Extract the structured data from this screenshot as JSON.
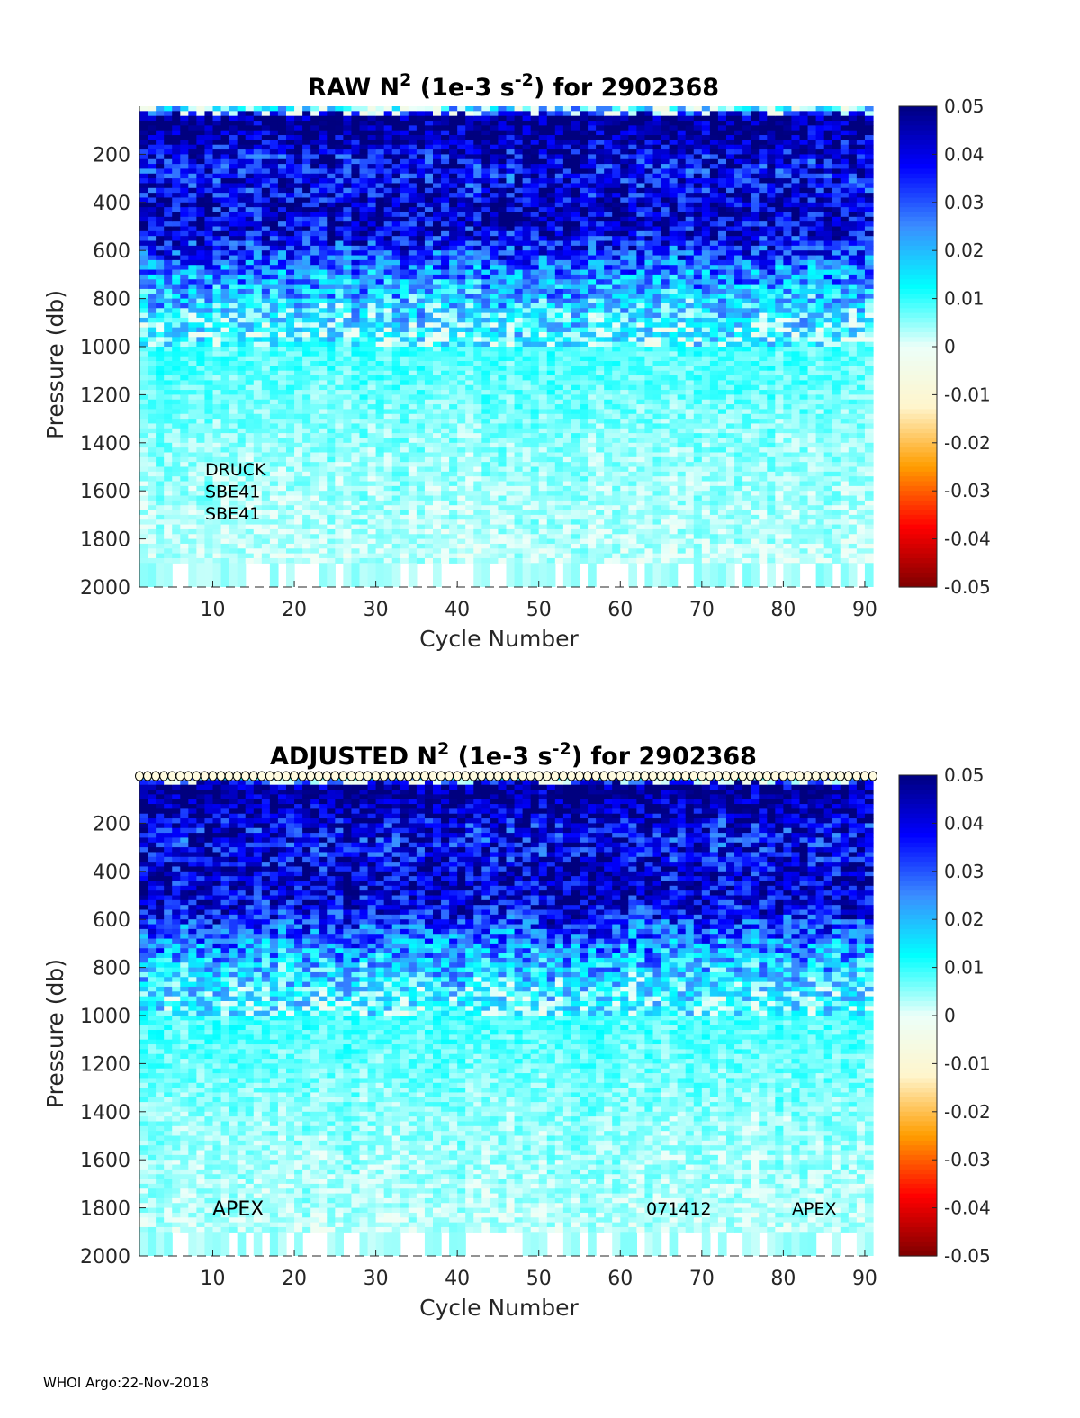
{
  "footer": "WHOI Argo:22-Nov-2018",
  "colorbar": {
    "ticks": [
      "0.05",
      "0.04",
      "0.03",
      "0.02",
      "0.01",
      "0",
      "-0.01",
      "-0.02",
      "-0.03",
      "-0.04",
      "-0.05"
    ],
    "range": [
      -0.05,
      0.05
    ],
    "colormap": [
      "#7f0000",
      "#ff0000",
      "#ff9e00",
      "#fff5cc",
      "#ecfff9",
      "#00ffff",
      "#3b8cff",
      "#0000ff",
      "#00007f"
    ]
  },
  "chart_data": [
    {
      "type": "heatmap",
      "title_main": "RAW N",
      "title_sup": "2",
      "title_mid": " (1e-3 s",
      "title_sup2": "-2",
      "title_end": ") for 2902368",
      "xlabel": "Cycle Number",
      "ylabel": "Pressure (db)",
      "xlim": [
        1,
        91
      ],
      "ylim": [
        0,
        2000
      ],
      "y_reversed": true,
      "xticks": [
        10,
        20,
        30,
        40,
        50,
        60,
        70,
        80,
        90
      ],
      "yticks": [
        200,
        400,
        600,
        800,
        1000,
        1200,
        1400,
        1600,
        1800,
        2000
      ],
      "clim": [
        -0.05,
        0.05
      ],
      "depth_profile": {
        "pressure": [
          0,
          40,
          100,
          200,
          300,
          400,
          500,
          600,
          700,
          800,
          900,
          1000,
          1200,
          1400,
          1600,
          1800,
          1900
        ],
        "n2": [
          0.003,
          0.05,
          0.05,
          0.04,
          0.038,
          0.042,
          0.042,
          0.035,
          0.025,
          0.018,
          0.012,
          0.009,
          0.007,
          0.005,
          0.004,
          0.003,
          0.002
        ]
      },
      "annotations": [
        "DRUCK",
        "SBE41",
        "SBE41"
      ],
      "top_markers": false
    },
    {
      "type": "heatmap",
      "title_main": "ADJUSTED N",
      "title_sup": "2",
      "title_mid": " (1e-3 s",
      "title_sup2": "-2",
      "title_end": ") for 2902368",
      "xlabel": "Cycle Number",
      "ylabel": "Pressure (db)",
      "xlim": [
        1,
        91
      ],
      "ylim": [
        0,
        2000
      ],
      "y_reversed": true,
      "xticks": [
        10,
        20,
        30,
        40,
        50,
        60,
        70,
        80,
        90
      ],
      "yticks": [
        200,
        400,
        600,
        800,
        1000,
        1200,
        1400,
        1600,
        1800,
        2000
      ],
      "clim": [
        -0.05,
        0.05
      ],
      "depth_profile": {
        "pressure": [
          0,
          40,
          100,
          200,
          300,
          400,
          500,
          600,
          700,
          800,
          900,
          1000,
          1200,
          1400,
          1600,
          1800,
          1900
        ],
        "n2": [
          0.003,
          0.05,
          0.05,
          0.04,
          0.038,
          0.042,
          0.042,
          0.035,
          0.025,
          0.018,
          0.012,
          0.009,
          0.007,
          0.005,
          0.004,
          0.003,
          0.002
        ]
      },
      "annotations_left": [
        "APEX"
      ],
      "annotations_right": [
        "071412",
        "APEX"
      ],
      "top_markers": true
    }
  ]
}
